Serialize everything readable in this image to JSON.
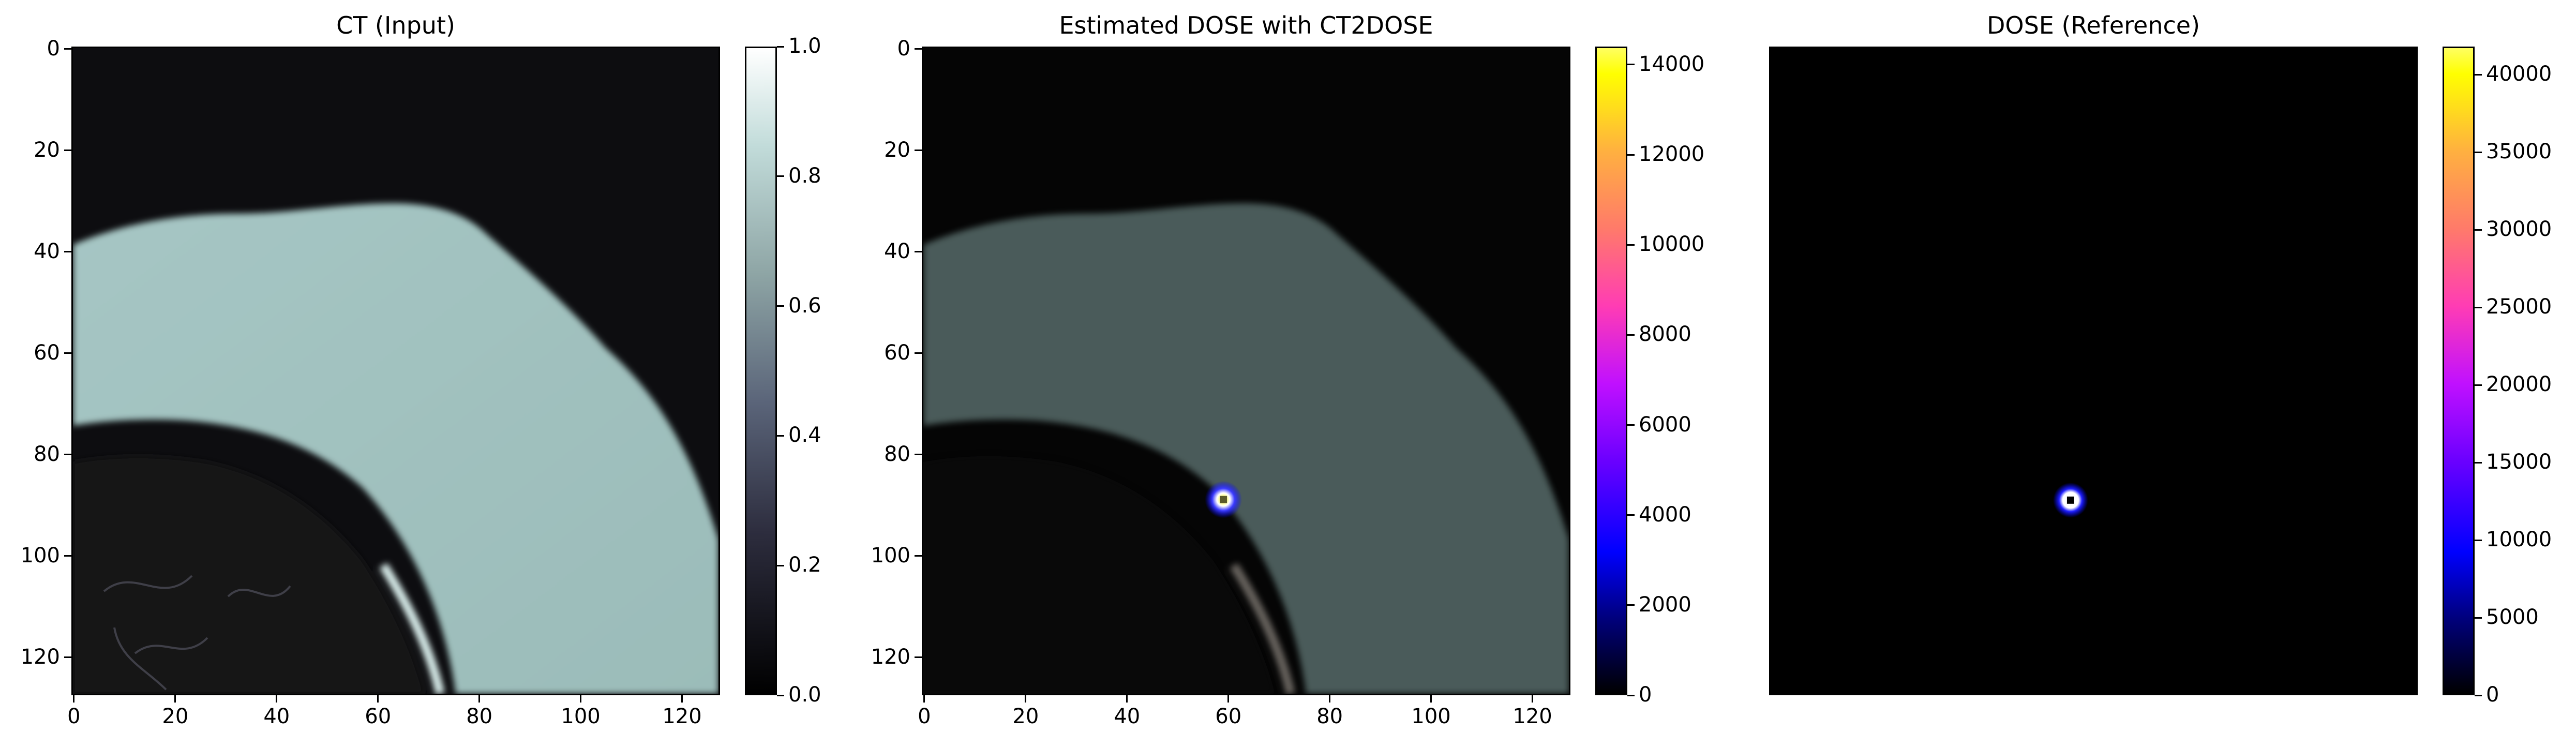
{
  "panels": [
    {
      "title": "CT (Input)",
      "xticks": [
        "0",
        "20",
        "40",
        "60",
        "80",
        "100",
        "120"
      ],
      "yticks": [
        "0",
        "20",
        "40",
        "60",
        "80",
        "100",
        "120"
      ],
      "colorbar": {
        "colormap": "bone",
        "ticks": [
          "0.0",
          "0.2",
          "0.4",
          "0.6",
          "0.8",
          "1.0"
        ],
        "range": [
          0.0,
          1.0
        ]
      }
    },
    {
      "title": "Estimated DOSE with CT2DOSE",
      "xticks": [
        "0",
        "20",
        "40",
        "60",
        "80",
        "100",
        "120"
      ],
      "yticks": [
        "0",
        "20",
        "40",
        "60",
        "80",
        "100",
        "120"
      ],
      "colorbar": {
        "colormap": "gnuplot2",
        "ticks": [
          "0",
          "2000",
          "4000",
          "6000",
          "8000",
          "10000",
          "12000",
          "14000"
        ],
        "range": [
          0,
          14400
        ]
      }
    },
    {
      "title": "DOSE (Reference)",
      "xticks": [],
      "yticks": [],
      "colorbar": {
        "colormap": "gnuplot2",
        "ticks": [
          "0",
          "5000",
          "10000",
          "15000",
          "20000",
          "25000",
          "30000",
          "35000",
          "40000"
        ],
        "range": [
          0,
          41800
        ]
      }
    }
  ],
  "chart_data": [
    {
      "type": "heatmap",
      "title": "CT (Input)",
      "x_range": [
        0,
        128
      ],
      "y_range": [
        128,
        0
      ],
      "colormap": "bone",
      "value_range": [
        0.0,
        1.0
      ],
      "description_values": {
        "lung_region_value": 0.05,
        "tissue_value": 0.7,
        "air_value": 0.02
      }
    },
    {
      "type": "heatmap",
      "title": "Estimated DOSE with CT2DOSE",
      "x_range": [
        0,
        128
      ],
      "y_range": [
        128,
        0
      ],
      "colormap": "gnuplot2",
      "value_range": [
        0,
        14400
      ],
      "hotspot": {
        "x": 59,
        "y": 89,
        "peak_value": 14000
      }
    },
    {
      "type": "heatmap",
      "title": "DOSE (Reference)",
      "x_range": [
        0,
        128
      ],
      "y_range": [
        128,
        0
      ],
      "colormap": "gnuplot2",
      "value_range": [
        0,
        41800
      ],
      "hotspot": {
        "x": 59,
        "y": 89,
        "peak_value": 41000
      }
    }
  ]
}
